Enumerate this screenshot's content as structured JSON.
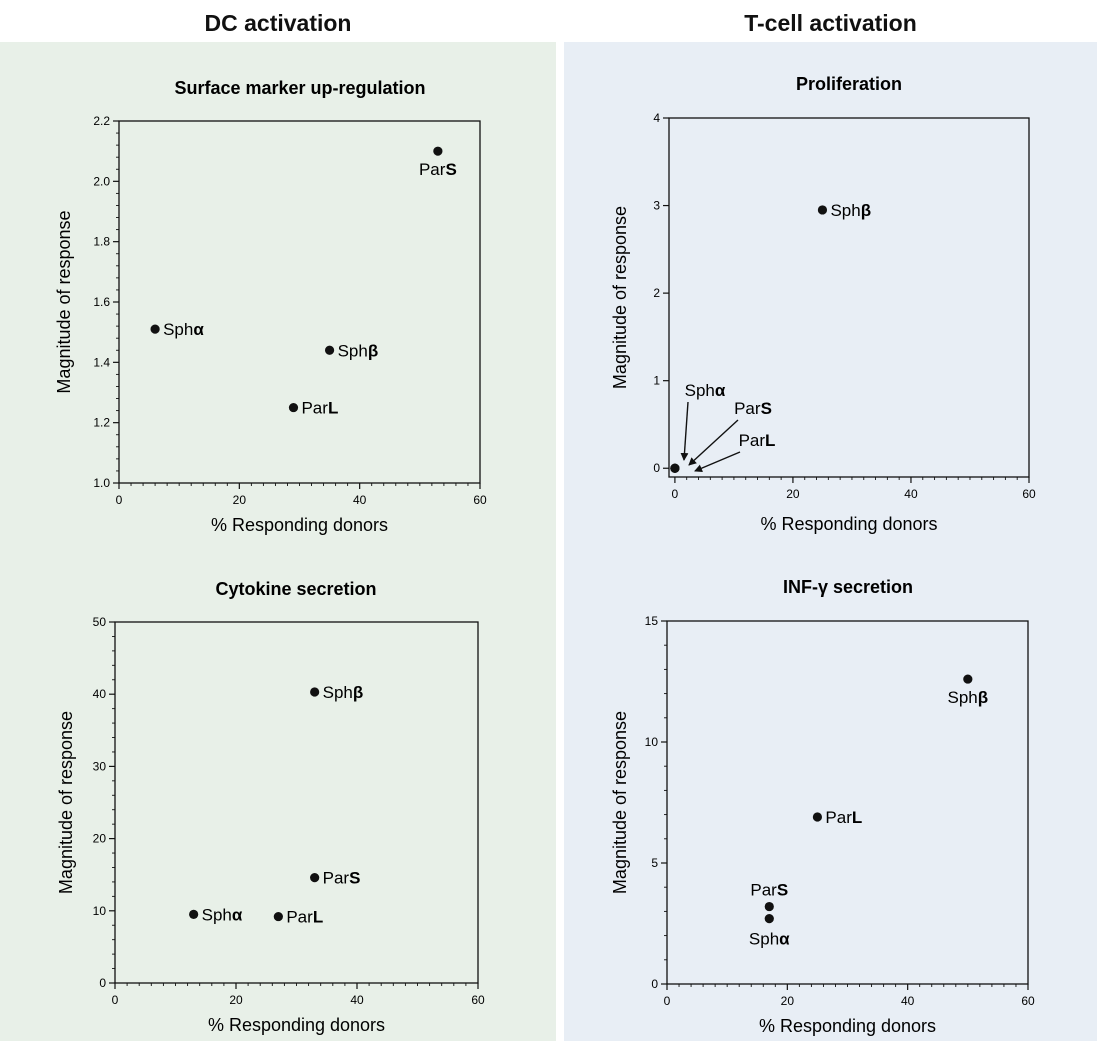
{
  "columns": {
    "dc_title": "DC activation",
    "tc_title": "T-cell activation"
  },
  "chart_data": [
    {
      "type": "scatter",
      "title": "Surface marker up-regulation",
      "xlabel": "% Responding donors",
      "ylabel": "Magnitude of response",
      "xlim": [
        0,
        60
      ],
      "ylim": [
        1.0,
        2.2
      ],
      "xticks": [
        "0",
        "20",
        "40",
        "60"
      ],
      "yticks": [
        "1.0",
        "1.2",
        "1.4",
        "1.6",
        "1.8",
        "2.0",
        "2.2"
      ],
      "grid": false,
      "points": [
        {
          "label": "ParS",
          "x": 53,
          "y": 2.1
        },
        {
          "label": "Sphα",
          "x": 6,
          "y": 1.51
        },
        {
          "label": "Sphβ",
          "x": 35,
          "y": 1.44
        },
        {
          "label": "ParL",
          "x": 29,
          "y": 1.25
        }
      ]
    },
    {
      "type": "scatter",
      "title": "Proliferation",
      "xlabel": "% Responding donors",
      "ylabel": "Magnitude of response",
      "xlim": [
        -1,
        60
      ],
      "ylim": [
        -0.1,
        4
      ],
      "xticks": [
        "0",
        "20",
        "40",
        "60"
      ],
      "yticks": [
        "0",
        "1",
        "2",
        "3",
        "4"
      ],
      "grid": false,
      "points": [
        {
          "label": "Sphβ",
          "x": 25,
          "y": 2.95
        },
        {
          "label": "Sphα",
          "x": 0,
          "y": 0
        },
        {
          "label": "ParS",
          "x": 0,
          "y": 0
        },
        {
          "label": "ParL",
          "x": 0,
          "y": 0
        }
      ]
    },
    {
      "type": "scatter",
      "title": "Cytokine secretion",
      "xlabel": "% Responding donors",
      "ylabel": "Magnitude of response",
      "xlim": [
        0,
        60
      ],
      "ylim": [
        0,
        50
      ],
      "xticks": [
        "0",
        "20",
        "40",
        "60"
      ],
      "yticks": [
        "0",
        "10",
        "20",
        "30",
        "40",
        "50"
      ],
      "grid": false,
      "points": [
        {
          "label": "Sphβ",
          "x": 33,
          "y": 40.3
        },
        {
          "label": "ParS",
          "x": 33,
          "y": 14.6
        },
        {
          "label": "Sphα",
          "x": 13,
          "y": 9.5
        },
        {
          "label": "ParL",
          "x": 27,
          "y": 9.2
        }
      ]
    },
    {
      "type": "scatter",
      "title": "INF-γ secretion",
      "xlabel": "% Responding donors",
      "ylabel": "Magnitude of response",
      "xlim": [
        0,
        60
      ],
      "ylim": [
        0,
        15
      ],
      "xticks": [
        "0",
        "20",
        "40",
        "60"
      ],
      "yticks": [
        "0",
        "5",
        "10",
        "15"
      ],
      "grid": false,
      "points": [
        {
          "label": "Sphβ",
          "x": 50,
          "y": 12.6
        },
        {
          "label": "ParL",
          "x": 25,
          "y": 6.9
        },
        {
          "label": "ParS",
          "x": 17,
          "y": 3.2
        },
        {
          "label": "Sphα",
          "x": 17,
          "y": 2.7
        }
      ]
    }
  ]
}
